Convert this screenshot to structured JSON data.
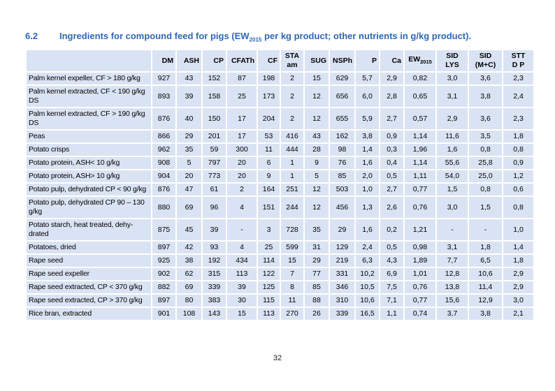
{
  "colors": {
    "cell_bg": "#d9e3f3",
    "grid": "#ffffff",
    "title_blue": "#2e68b1",
    "text": "#000000"
  },
  "heading": {
    "number": "6.2",
    "title_pre": "Ingredients for compound feed for pigs (EW",
    "title_sub": "2015",
    "title_post": " per kg product; other nutrients in g/kg product)."
  },
  "footer": {
    "page_number": "32"
  },
  "table": {
    "columns": [
      {
        "id": "dm",
        "label": "DM"
      },
      {
        "id": "ash",
        "label": "ASH"
      },
      {
        "id": "cp",
        "label": "CP"
      },
      {
        "id": "cfath",
        "label": "CFATh"
      },
      {
        "id": "cf",
        "label": "CF"
      },
      {
        "id": "sta-am",
        "label": "STA am",
        "lines": [
          "STA",
          "am"
        ]
      },
      {
        "id": "sug",
        "label": "SUG"
      },
      {
        "id": "nsph",
        "label": "NSPh"
      },
      {
        "id": "p",
        "label": "P"
      },
      {
        "id": "ca",
        "label": "Ca"
      },
      {
        "id": "ew2015",
        "label": "EW2015",
        "main": "EW",
        "sub": "2015"
      },
      {
        "id": "sid-lys",
        "label": "SID LYS",
        "lines": [
          "SID",
          "LYS"
        ]
      },
      {
        "id": "sid-mc",
        "label": "SID (M+C)",
        "lines": [
          "SID",
          "(M+C)"
        ]
      },
      {
        "id": "stt-dp",
        "label": "STT D P",
        "lines": [
          "STT",
          "D P"
        ]
      }
    ],
    "rows": [
      {
        "label": "Palm kernel expeller, CF > 180 g/kg",
        "values": [
          "927",
          "43",
          "152",
          "87",
          "198",
          "2",
          "15",
          "629",
          "5,7",
          "2,9",
          "0,82",
          "3,0",
          "3,6",
          "2,3"
        ]
      },
      {
        "label": "Palm kernel extracted, CF < 190 g/kg DS",
        "values": [
          "893",
          "39",
          "158",
          "25",
          "173",
          "2",
          "12",
          "656",
          "6,0",
          "2,8",
          "0,65",
          "3,1",
          "3,8",
          "2,4"
        ]
      },
      {
        "label": "Palm kernel extracted, CF > 190 g/kg DS",
        "values": [
          "876",
          "40",
          "150",
          "17",
          "204",
          "2",
          "12",
          "655",
          "5,9",
          "2,7",
          "0,57",
          "2,9",
          "3,6",
          "2,3"
        ]
      },
      {
        "label": "Peas",
        "values": [
          "866",
          "29",
          "201",
          "17",
          "53",
          "416",
          "43",
          "162",
          "3,8",
          "0,9",
          "1,14",
          "11,6",
          "3,5",
          "1,8"
        ]
      },
      {
        "label": "Potato crisps",
        "values": [
          "962",
          "35",
          "59",
          "300",
          "11",
          "444",
          "28",
          "98",
          "1,4",
          "0,3",
          "1,96",
          "1,6",
          "0,8",
          "0,8"
        ]
      },
      {
        "label": "Potato protein, ASH< 10 g/kg",
        "values": [
          "908",
          "5",
          "797",
          "20",
          "6",
          "1",
          "9",
          "76",
          "1,6",
          "0,4",
          "1,14",
          "55,6",
          "25,8",
          "0,9"
        ]
      },
      {
        "label": "Potato protein, ASH> 10 g/kg",
        "values": [
          "904",
          "20",
          "773",
          "20",
          "9",
          "1",
          "5",
          "85",
          "2,0",
          "0,5",
          "1,11",
          "54,0",
          "25,0",
          "1,2"
        ]
      },
      {
        "label": "Potato pulp, dehydrated CP < 90 g/kg",
        "values": [
          "876",
          "47",
          "61",
          "2",
          "164",
          "251",
          "12",
          "503",
          "1,0",
          "2,7",
          "0,77",
          "1,5",
          "0,8",
          "0,6"
        ]
      },
      {
        "label": "Potato pulp, dehydrated CP 90 – 130 g/kg",
        "values": [
          "880",
          "69",
          "96",
          "4",
          "151",
          "244",
          "12",
          "456",
          "1,3",
          "2,6",
          "0,76",
          "3,0",
          "1,5",
          "0,8"
        ]
      },
      {
        "label": "Potato starch, heat treated, dehy-drated",
        "values": [
          "875",
          "45",
          "39",
          "-",
          "3",
          "728",
          "35",
          "29",
          "1,6",
          "0,2",
          "1,21",
          "-",
          "-",
          "1,0"
        ]
      },
      {
        "label": "Potatoes, dried",
        "values": [
          "897",
          "42",
          "93",
          "4",
          "25",
          "599",
          "31",
          "129",
          "2,4",
          "0,5",
          "0,98",
          "3,1",
          "1,8",
          "1,4"
        ]
      },
      {
        "label": "Rape seed",
        "values": [
          "925",
          "38",
          "192",
          "434",
          "114",
          "15",
          "29",
          "219",
          "6,3",
          "4,3",
          "1,89",
          "7,7",
          "6,5",
          "1,8"
        ]
      },
      {
        "label": "Rape seed expeller",
        "values": [
          "902",
          "62",
          "315",
          "113",
          "122",
          "7",
          "77",
          "331",
          "10,2",
          "6,9",
          "1,01",
          "12,8",
          "10,6",
          "2,9"
        ]
      },
      {
        "label": "Rape seed extracted, CP < 370 g/kg",
        "values": [
          "882",
          "69",
          "339",
          "39",
          "125",
          "8",
          "85",
          "346",
          "10,5",
          "7,5",
          "0,76",
          "13,8",
          "11,4",
          "2,9"
        ]
      },
      {
        "label": "Rape seed extracted, CP > 370 g/kg",
        "values": [
          "897",
          "80",
          "383",
          "30",
          "115",
          "11",
          "88",
          "310",
          "10,6",
          "7,1",
          "0,77",
          "15,6",
          "12,9",
          "3,0"
        ]
      },
      {
        "label": "Rice bran, extracted",
        "values": [
          "901",
          "108",
          "143",
          "15",
          "113",
          "270",
          "26",
          "339",
          "16,5",
          "1,1",
          "0,74",
          "3,7",
          "3,8",
          "2,1"
        ]
      }
    ]
  }
}
